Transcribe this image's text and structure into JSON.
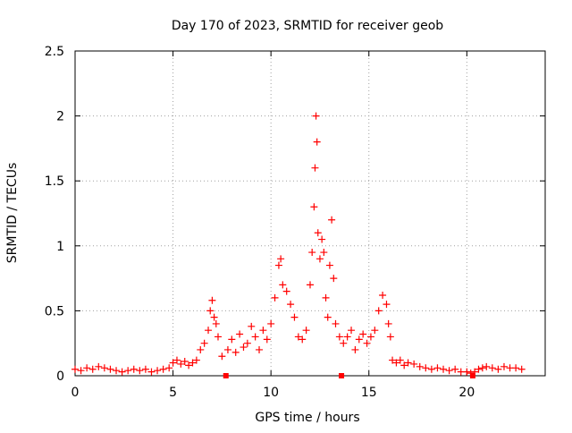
{
  "chart_data": {
    "type": "scatter",
    "title": "Day 170 of 2023, SRMTID for receiver geob",
    "xlabel": "GPS time / hours",
    "ylabel": "SRMTID / TECUs",
    "xlim": [
      0,
      24
    ],
    "ylim": [
      0,
      2.5
    ],
    "xticks": [
      0,
      5,
      10,
      15,
      20
    ],
    "yticks": [
      0,
      0.5,
      1,
      1.5,
      2,
      2.5
    ],
    "xtick_labels": [
      "0",
      "5",
      "10",
      "15",
      "20"
    ],
    "ytick_labels": [
      "0",
      "0.5",
      "1",
      "1.5",
      "2",
      "2.5"
    ],
    "grid": true,
    "marker": "+",
    "series": [
      {
        "name": "SRMTID",
        "color": "#ff0000",
        "x": [
          0.0,
          0.3,
          0.6,
          0.9,
          1.2,
          1.5,
          1.8,
          2.1,
          2.4,
          2.7,
          3.0,
          3.3,
          3.6,
          3.9,
          4.2,
          4.5,
          4.8,
          5.0,
          5.2,
          5.4,
          5.6,
          5.8,
          6.0,
          6.2,
          6.4,
          6.6,
          6.8,
          6.9,
          7.0,
          7.1,
          7.2,
          7.3,
          7.5,
          7.8,
          8.0,
          8.2,
          8.4,
          8.6,
          8.8,
          9.0,
          9.2,
          9.4,
          9.6,
          9.8,
          10.0,
          10.2,
          10.4,
          10.5,
          10.6,
          10.8,
          11.0,
          11.2,
          11.4,
          11.6,
          11.8,
          12.0,
          12.1,
          12.2,
          12.25,
          12.3,
          12.35,
          12.4,
          12.5,
          12.6,
          12.7,
          12.8,
          12.9,
          13.0,
          13.1,
          13.2,
          13.3,
          13.5,
          13.7,
          13.9,
          14.1,
          14.3,
          14.5,
          14.7,
          14.9,
          15.1,
          15.3,
          15.5,
          15.7,
          15.9,
          16.0,
          16.1,
          16.2,
          16.4,
          16.6,
          16.8,
          17.0,
          17.3,
          17.6,
          17.9,
          18.2,
          18.5,
          18.8,
          19.1,
          19.4,
          19.7,
          20.0,
          20.2,
          20.4,
          20.6,
          20.8,
          21.0,
          21.3,
          21.6,
          21.9,
          22.2,
          22.5,
          22.8
        ],
        "y": [
          0.05,
          0.04,
          0.06,
          0.05,
          0.07,
          0.06,
          0.05,
          0.04,
          0.03,
          0.04,
          0.05,
          0.04,
          0.05,
          0.03,
          0.04,
          0.05,
          0.06,
          0.1,
          0.12,
          0.09,
          0.11,
          0.08,
          0.1,
          0.12,
          0.2,
          0.25,
          0.35,
          0.5,
          0.58,
          0.45,
          0.4,
          0.3,
          0.15,
          0.2,
          0.28,
          0.18,
          0.32,
          0.22,
          0.25,
          0.38,
          0.3,
          0.2,
          0.35,
          0.28,
          0.4,
          0.6,
          0.85,
          0.9,
          0.7,
          0.65,
          0.55,
          0.45,
          0.3,
          0.28,
          0.35,
          0.7,
          0.95,
          1.3,
          1.6,
          2.0,
          1.8,
          1.1,
          0.9,
          1.05,
          0.95,
          0.6,
          0.45,
          0.85,
          1.2,
          0.75,
          0.4,
          0.3,
          0.25,
          0.3,
          0.35,
          0.2,
          0.28,
          0.32,
          0.25,
          0.3,
          0.35,
          0.5,
          0.62,
          0.55,
          0.4,
          0.3,
          0.12,
          0.1,
          0.12,
          0.08,
          0.1,
          0.09,
          0.07,
          0.06,
          0.05,
          0.06,
          0.05,
          0.04,
          0.05,
          0.03,
          0.03,
          0.02,
          0.03,
          0.05,
          0.06,
          0.07,
          0.06,
          0.05,
          0.07,
          0.06,
          0.06,
          0.05
        ]
      }
    ],
    "axis_markers": [
      7.7,
      13.6,
      20.3
    ]
  }
}
